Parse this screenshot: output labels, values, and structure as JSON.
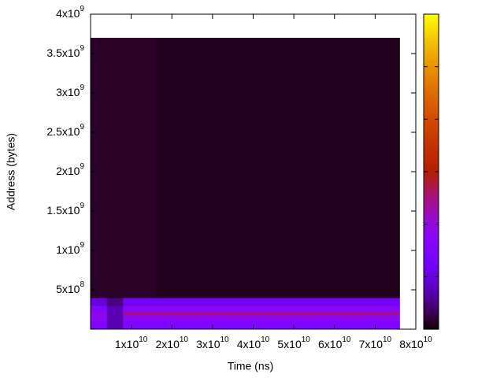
{
  "chart_data": {
    "type": "heatmap",
    "xlabel": "Time (ns)",
    "ylabel": "Address (bytes)",
    "xlim": [
      0,
      80000000000
    ],
    "ylim": [
      0,
      4000000000
    ],
    "zlim": [
      0,
      12
    ],
    "xticks": [
      0,
      {
        "value": 10000000000,
        "label": "1x10^10"
      },
      {
        "value": 20000000000,
        "label": "2x10^10"
      },
      {
        "value": 30000000000,
        "label": "3x10^10"
      },
      {
        "value": 40000000000,
        "label": "4x10^10"
      },
      {
        "value": 50000000000,
        "label": "5x10^10"
      },
      {
        "value": 60000000000,
        "label": "6x10^10"
      },
      {
        "value": 70000000000,
        "label": "7x10^10"
      },
      {
        "value": 80000000000,
        "label": "8x10^10"
      }
    ],
    "yticks": [
      0,
      {
        "value": 500000000,
        "label": "5x10^8"
      },
      {
        "value": 1000000000,
        "label": "1x10^9"
      },
      {
        "value": 1500000000,
        "label": "1.5x10^9"
      },
      {
        "value": 2000000000,
        "label": "2x10^9"
      },
      {
        "value": 2500000000,
        "label": "2.5x10^9"
      },
      {
        "value": 3000000000,
        "label": "3x10^9"
      },
      {
        "value": 3500000000,
        "label": "3.5x10^9"
      },
      {
        "value": 4000000000,
        "label": "4x10^9"
      }
    ],
    "zticks": [
      0,
      2,
      4,
      6,
      8,
      10,
      12
    ],
    "palette": "gnuplot",
    "x": [
      0,
      4000000000,
      8000000000,
      12000000000,
      16000000000,
      20000000000,
      24000000000,
      28000000000,
      32000000000,
      36000000000,
      40000000000,
      44000000000,
      48000000000,
      52000000000,
      56000000000,
      60000000000,
      64000000000,
      68000000000,
      72000000000,
      76000000000
    ],
    "y": [
      0,
      100000000,
      180000000,
      220000000,
      300000000,
      400000000,
      3700000000
    ],
    "z": [
      [
        3,
        1.5,
        3,
        3,
        3,
        3,
        3,
        3,
        3,
        3,
        3,
        3,
        3,
        3,
        3,
        3,
        3,
        3,
        3
      ],
      [
        3.5,
        1.5,
        3.5,
        3.5,
        3.5,
        3.5,
        3.5,
        3.5,
        3.5,
        3.5,
        3.5,
        3.5,
        3.5,
        3.5,
        3.5,
        3.5,
        3.5,
        3.5,
        3.5
      ],
      [
        4,
        1.5,
        5,
        5,
        5,
        5,
        5,
        5,
        5,
        5,
        5,
        5,
        5,
        5,
        5,
        5,
        5,
        5,
        5
      ],
      [
        3,
        1.5,
        3.5,
        3.5,
        3.5,
        3.5,
        3.5,
        3.5,
        3.5,
        3.5,
        3.5,
        3.5,
        3.5,
        3.5,
        3.5,
        3.5,
        3.5,
        3.5,
        3.5
      ],
      [
        2,
        1,
        2.5,
        2.5,
        2.5,
        2.5,
        2.5,
        2.5,
        2.5,
        2.5,
        2.5,
        2.5,
        2.5,
        2.5,
        2.5,
        2.5,
        2.5,
        2.5,
        2.5
      ],
      [
        0.3,
        0.3,
        0.3,
        0.3,
        0.2,
        0.2,
        0.2,
        0.2,
        0.2,
        0.2,
        0.2,
        0.2,
        0.2,
        0.2,
        0.2,
        0.2,
        0.2,
        0.2,
        0.2
      ]
    ]
  }
}
